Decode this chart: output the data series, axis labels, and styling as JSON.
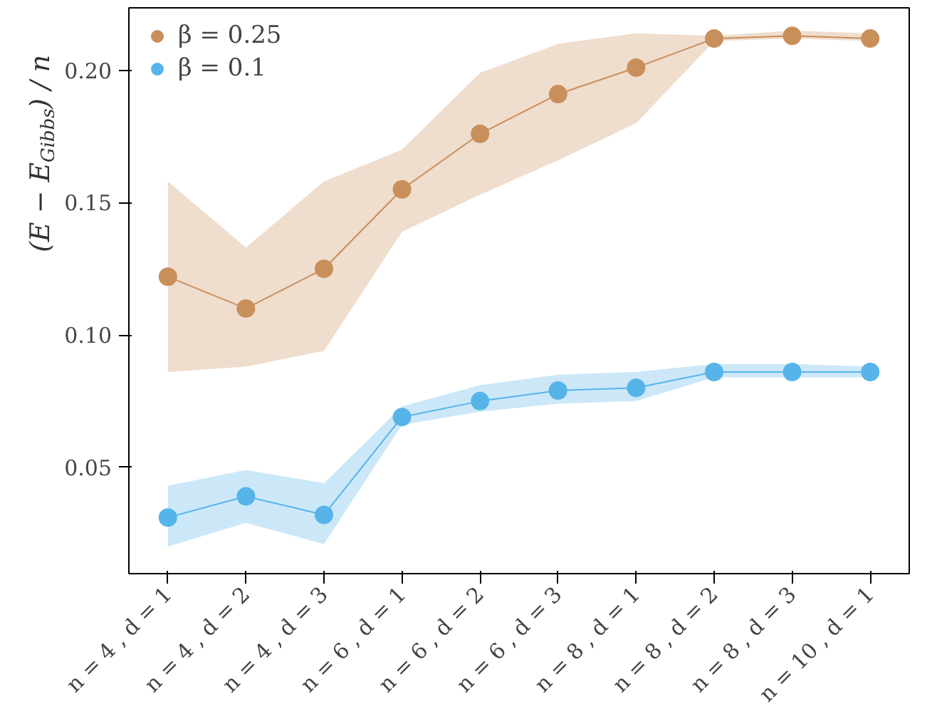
{
  "chart_data": {
    "type": "line",
    "ylabel": "(E − E$_{Gibbs}$) / n",
    "categories": [
      "n = 4 , d = 1",
      "n = 4 , d = 2",
      "n = 4 , d = 3",
      "n = 6 , d = 1",
      "n = 6 , d = 2",
      "n = 6 , d = 3",
      "n = 8 , d = 1",
      "n = 8 , d = 2",
      "n = 8 , d = 3",
      "n = 10 , d = 1"
    ],
    "series": [
      {
        "name": "β = 0.25",
        "color": "#c98f5b",
        "values": [
          0.122,
          0.11,
          0.125,
          0.155,
          0.176,
          0.191,
          0.201,
          0.212,
          0.213,
          0.212
        ],
        "lower": [
          0.086,
          0.088,
          0.094,
          0.139,
          0.153,
          0.166,
          0.18,
          0.211,
          0.212,
          0.211
        ],
        "upper": [
          0.158,
          0.133,
          0.158,
          0.17,
          0.199,
          0.21,
          0.214,
          0.213,
          0.215,
          0.214
        ]
      },
      {
        "name": "β = 0.1",
        "color": "#56b4e9",
        "values": [
          0.031,
          0.039,
          0.032,
          0.069,
          0.075,
          0.079,
          0.08,
          0.086,
          0.086,
          0.086
        ],
        "lower": [
          0.02,
          0.029,
          0.021,
          0.066,
          0.071,
          0.074,
          0.075,
          0.084,
          0.084,
          0.084
        ],
        "upper": [
          0.043,
          0.049,
          0.044,
          0.073,
          0.081,
          0.085,
          0.086,
          0.089,
          0.089,
          0.088
        ]
      }
    ],
    "ylim": [
      0.0098,
      0.2236
    ],
    "yticks": [
      0.05,
      {
        "value": 0.1,
        "label": "0.10"
      },
      0.15,
      {
        "value": 0.2,
        "label": "0.20"
      }
    ],
    "grid": false,
    "legend": "top left",
    "marker": "circle",
    "line_style": "solid"
  }
}
